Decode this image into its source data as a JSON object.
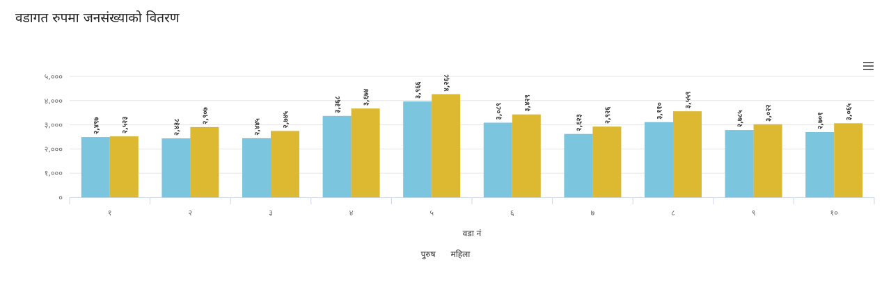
{
  "page": {
    "title": "वडागत रुपमा जनसंख्याको वितरण"
  },
  "chart_data": {
    "type": "bar",
    "title": "",
    "xlabel": "वडा नं",
    "ylabel": "",
    "categories": [
      "१",
      "२",
      "३",
      "४",
      "५",
      "६",
      "७",
      "८",
      "९",
      "१०"
    ],
    "ylim": [
      0,
      5000
    ],
    "yticks": [
      0,
      1000,
      2000,
      3000,
      4000,
      5000
    ],
    "ytick_labels": [
      "०",
      "१,०००",
      "२,०००",
      "३,०००",
      "४,०००",
      "५,०००"
    ],
    "grid": true,
    "legend_position": "bottom-center",
    "series": [
      {
        "name": "पुरुष",
        "color": "#7cc5df",
        "values": [
          2497,
          2438,
          2445,
          3368,
          3966,
          3089,
          2623,
          3110,
          2785,
          2701
        ],
        "labels": [
          "२,४९७",
          "२,४३८",
          "२,४४५",
          "३,३६८",
          "३,९६६",
          "३,०८९",
          "२,६२३",
          "३,११०",
          "२,७८५",
          "२,७०१"
        ]
      },
      {
        "name": "महिला",
        "color": "#ddb932",
        "values": [
          2523,
          2907,
          2745,
          3674,
          4268,
          3429,
          2926,
          3559,
          3022,
          3065
        ],
        "labels": [
          "२,५२३",
          "२,९०७",
          "२,७४५",
          "३,६७४",
          "४,२६८",
          "३,४२९",
          "२,९२६",
          "३,५५९",
          "३,०२२",
          "३,०६५"
        ]
      }
    ]
  }
}
